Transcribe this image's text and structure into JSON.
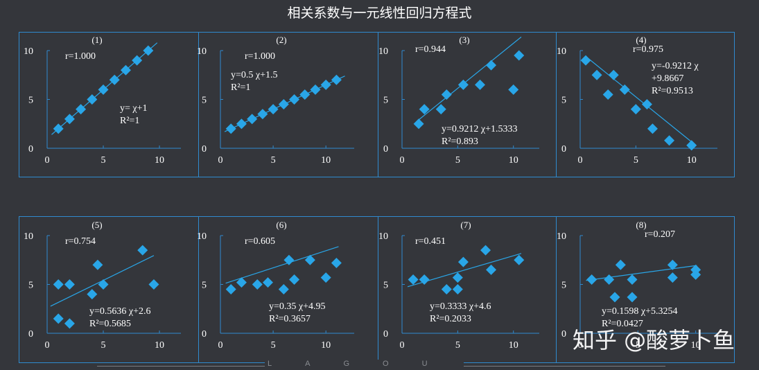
{
  "title": "相关系数与一元线性回归方程式",
  "watermark": "知乎 @酸萝卜鱼",
  "footer_text": "LAGOU",
  "colors": {
    "background": "#34363b",
    "frame": "#2f8bd0",
    "marker": "#29a6e8",
    "line": "#29a6e8",
    "axis": "#2f8bd0",
    "text": "#ffffff"
  },
  "chart_data": [
    {
      "type": "scatter",
      "panel_label": "(1)",
      "r_text": "r=1.000",
      "eq_lines": [
        "y= χ+1",
        "R²=1"
      ],
      "xticks": [
        0,
        5,
        10
      ],
      "yticks": [
        0,
        5,
        10
      ],
      "xlim": [
        0,
        10.8
      ],
      "ylim": [
        0,
        10
      ],
      "points": [
        [
          1,
          2
        ],
        [
          2,
          3
        ],
        [
          3,
          4
        ],
        [
          4,
          5
        ],
        [
          5,
          6
        ],
        [
          6,
          7
        ],
        [
          7,
          8
        ],
        [
          8,
          9
        ],
        [
          9,
          10
        ]
      ],
      "fit": {
        "slope": 1,
        "intercept": 1
      }
    },
    {
      "type": "scatter",
      "panel_label": "(2)",
      "r_text": "r=1.000",
      "eq_lines": [
        "y=0.5 χ+1.5",
        "R²=1"
      ],
      "xticks": [
        0,
        5,
        10
      ],
      "yticks": [
        0,
        5,
        10
      ],
      "xlim": [
        0,
        11.5
      ],
      "ylim": [
        0,
        10
      ],
      "points": [
        [
          1,
          2
        ],
        [
          2,
          2.5
        ],
        [
          3,
          3
        ],
        [
          4,
          3.5
        ],
        [
          5,
          4
        ],
        [
          6,
          4.5
        ],
        [
          7,
          5
        ],
        [
          8,
          5.5
        ],
        [
          9,
          6
        ],
        [
          10,
          6.5
        ],
        [
          11,
          7
        ]
      ],
      "fit": {
        "slope": 0.5,
        "intercept": 1.5
      }
    },
    {
      "type": "scatter",
      "panel_label": "(3)",
      "r_text": "r=0.944",
      "eq_lines": [
        "y=0.9212 χ+1.5333",
        "R²=0.893"
      ],
      "xticks": [
        0,
        5,
        10
      ],
      "yticks": [
        0,
        5,
        10
      ],
      "xlim": [
        0,
        11.2
      ],
      "ylim": [
        0,
        10
      ],
      "points": [
        [
          1.5,
          2.5
        ],
        [
          2,
          4
        ],
        [
          3.5,
          4
        ],
        [
          4,
          5.5
        ],
        [
          5.5,
          6.5
        ],
        [
          7,
          6.5
        ],
        [
          8,
          8.5
        ],
        [
          10,
          6
        ],
        [
          10.5,
          9.5
        ]
      ],
      "fit": {
        "slope": 0.9212,
        "intercept": 1.5333,
        "x_range": [
          1.3,
          10.7
        ]
      }
    },
    {
      "type": "scatter",
      "panel_label": "(4)",
      "r_text": "r=0.975",
      "eq_lines": [
        "y=-0.9212 χ",
        "+9.8667",
        "R²=0.9513"
      ],
      "xticks": [
        0,
        5,
        10
      ],
      "yticks": [
        0,
        5,
        10
      ],
      "xlim": [
        0,
        11.2
      ],
      "ylim": [
        0,
        10
      ],
      "points": [
        [
          0.5,
          9
        ],
        [
          1.5,
          7.5
        ],
        [
          2.5,
          5.5
        ],
        [
          3,
          7.5
        ],
        [
          4,
          6
        ],
        [
          5,
          4
        ],
        [
          6,
          4.5
        ],
        [
          6.5,
          2
        ],
        [
          8,
          0.8
        ],
        [
          10,
          0.3
        ]
      ],
      "fit": {
        "slope": -0.9212,
        "intercept": 9.8667,
        "x_range": [
          0.5,
          10.2
        ]
      }
    },
    {
      "type": "scatter",
      "panel_label": "(5)",
      "r_text": "r=0.754",
      "eq_lines": [
        "y=0.5636 χ+2.6",
        "R²=0.5685"
      ],
      "xticks": [
        0,
        5,
        10
      ],
      "yticks": [
        0,
        5,
        10
      ],
      "xlim": [
        0,
        10.8
      ],
      "ylim": [
        0,
        10
      ],
      "points": [
        [
          1,
          1.5
        ],
        [
          1,
          5
        ],
        [
          2,
          5
        ],
        [
          2,
          1
        ],
        [
          4,
          4
        ],
        [
          4.5,
          7
        ],
        [
          5,
          5
        ],
        [
          8.5,
          8.5
        ],
        [
          9.5,
          5
        ]
      ],
      "fit": {
        "slope": 0.5636,
        "intercept": 2.6,
        "x_range": [
          0.3,
          9.5
        ]
      }
    },
    {
      "type": "scatter",
      "panel_label": "(6)",
      "r_text": "r=0.605",
      "eq_lines": [
        "y=0.35 χ+4.95",
        "R²=0.3657"
      ],
      "xticks": [
        0,
        5,
        10
      ],
      "yticks": [
        0,
        5,
        10
      ],
      "xlim": [
        0,
        11.5
      ],
      "ylim": [
        0,
        10
      ],
      "points": [
        [
          1,
          4.5
        ],
        [
          2,
          5.2
        ],
        [
          3.5,
          5
        ],
        [
          4.5,
          5.2
        ],
        [
          6,
          4.5
        ],
        [
          6.5,
          7.5
        ],
        [
          7,
          5.5
        ],
        [
          8.5,
          7.5
        ],
        [
          10,
          5.7
        ],
        [
          11,
          7.2
        ]
      ],
      "fit": {
        "slope": 0.35,
        "intercept": 4.95,
        "x_range": [
          0.5,
          11.2
        ]
      }
    },
    {
      "type": "scatter",
      "panel_label": "(7)",
      "r_text": "r=0.451",
      "eq_lines": [
        "y=0.3333 χ+4.6",
        "R²=0.2033"
      ],
      "xticks": [
        0,
        5,
        10
      ],
      "yticks": [
        0,
        5,
        10
      ],
      "xlim": [
        0,
        11.2
      ],
      "ylim": [
        0,
        10
      ],
      "points": [
        [
          1,
          5.5
        ],
        [
          2,
          5.5
        ],
        [
          4,
          4.5
        ],
        [
          5,
          5.7
        ],
        [
          5,
          4.5
        ],
        [
          5.5,
          7.3
        ],
        [
          7.5,
          8.5
        ],
        [
          8,
          6.5
        ],
        [
          10.5,
          7.5
        ]
      ],
      "fit": {
        "slope": 0.3333,
        "intercept": 4.6,
        "x_range": [
          0.5,
          10.7
        ]
      }
    },
    {
      "type": "scatter",
      "panel_label": "(8)",
      "r_text": "r=0.207",
      "eq_lines": [
        "y=0.1598 χ+5.3254",
        "R²=0.0427"
      ],
      "xticks": [
        0,
        5,
        10
      ],
      "yticks": [
        0,
        5,
        10
      ],
      "xlim": [
        0,
        10.8
      ],
      "ylim": [
        0,
        10
      ],
      "points": [
        [
          1,
          5.5
        ],
        [
          2.5,
          5.5
        ],
        [
          3,
          3.7
        ],
        [
          3.5,
          7
        ],
        [
          4.5,
          5.5
        ],
        [
          4.5,
          3.7
        ],
        [
          8,
          7
        ],
        [
          8,
          5.7
        ],
        [
          10,
          6.5
        ],
        [
          10,
          6
        ]
      ],
      "fit": {
        "slope": 0.1598,
        "intercept": 5.3254,
        "x_range": [
          0.5,
          10.1
        ]
      }
    }
  ]
}
